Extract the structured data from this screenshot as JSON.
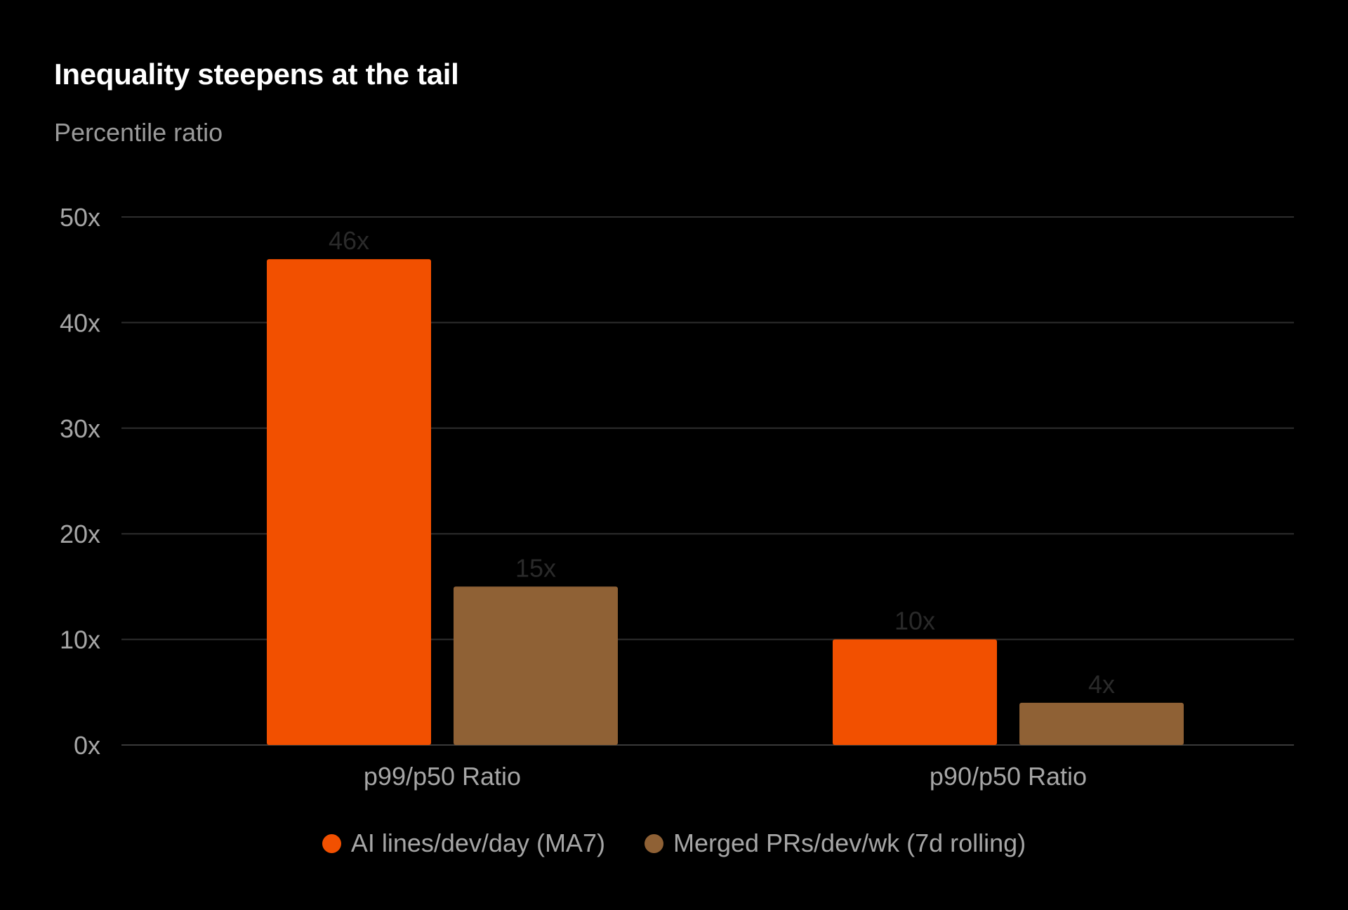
{
  "chart_data": {
    "type": "bar",
    "title": "Inequality steepens at the tail",
    "subtitle": "Percentile ratio",
    "xlabel": "",
    "ylabel": "",
    "categories": [
      "p99/p50 Ratio",
      "p90/p50 Ratio"
    ],
    "series": [
      {
        "name": "AI lines/dev/day (MA7)",
        "color": "#f25000",
        "values": [
          46,
          10
        ],
        "labels": [
          "46x",
          "10x"
        ]
      },
      {
        "name": "Merged PRs/dev/wk (7d rolling)",
        "color": "#8f6135",
        "values": [
          15,
          4
        ],
        "labels": [
          "15x",
          "4x"
        ]
      }
    ],
    "ylim": [
      0,
      50
    ],
    "yticks": [
      0,
      10,
      20,
      30,
      40,
      50
    ],
    "ytick_labels": [
      "0x",
      "10x",
      "20x",
      "30x",
      "40x",
      "50x"
    ],
    "grid": true,
    "legend_position": "bottom-center"
  }
}
